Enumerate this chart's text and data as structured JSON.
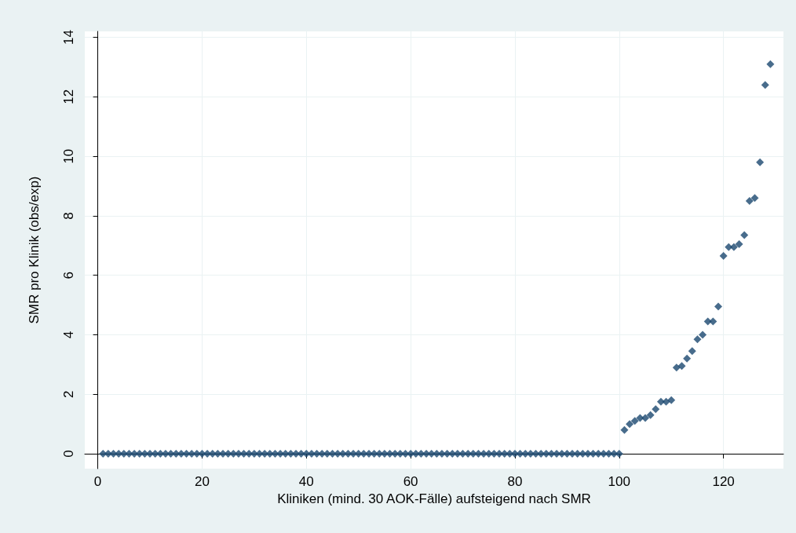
{
  "chart_data": {
    "type": "scatter",
    "xlabel": "Kliniken (mind. 30 AOK-Fälle) aufsteigend nach SMR",
    "ylabel": "SMR pro Klinik (obs/exp)",
    "x": [
      1,
      2,
      3,
      4,
      5,
      6,
      7,
      8,
      9,
      10,
      11,
      12,
      13,
      14,
      15,
      16,
      17,
      18,
      19,
      20,
      21,
      22,
      23,
      24,
      25,
      26,
      27,
      28,
      29,
      30,
      31,
      32,
      33,
      34,
      35,
      36,
      37,
      38,
      39,
      40,
      41,
      42,
      43,
      44,
      45,
      46,
      47,
      48,
      49,
      50,
      51,
      52,
      53,
      54,
      55,
      56,
      57,
      58,
      59,
      60,
      61,
      62,
      63,
      64,
      65,
      66,
      67,
      68,
      69,
      70,
      71,
      72,
      73,
      74,
      75,
      76,
      77,
      78,
      79,
      80,
      81,
      82,
      83,
      84,
      85,
      86,
      87,
      88,
      89,
      90,
      91,
      92,
      93,
      94,
      95,
      96,
      97,
      98,
      99,
      100,
      101,
      102,
      103,
      104,
      105,
      106,
      107,
      108,
      109,
      110,
      111,
      112,
      113,
      114,
      115,
      116,
      117,
      118,
      119,
      120,
      121,
      122,
      123,
      124,
      125,
      126,
      127,
      128,
      129
    ],
    "values": [
      0,
      0,
      0,
      0,
      0,
      0,
      0,
      0,
      0,
      0,
      0,
      0,
      0,
      0,
      0,
      0,
      0,
      0,
      0,
      0,
      0,
      0,
      0,
      0,
      0,
      0,
      0,
      0,
      0,
      0,
      0,
      0,
      0,
      0,
      0,
      0,
      0,
      0,
      0,
      0,
      0,
      0,
      0,
      0,
      0,
      0,
      0,
      0,
      0,
      0,
      0,
      0,
      0,
      0,
      0,
      0,
      0,
      0,
      0,
      0,
      0,
      0,
      0,
      0,
      0,
      0,
      0,
      0,
      0,
      0,
      0,
      0,
      0,
      0,
      0,
      0,
      0,
      0,
      0,
      0,
      0,
      0,
      0,
      0,
      0,
      0,
      0,
      0,
      0,
      0,
      0,
      0,
      0,
      0,
      0,
      0,
      0,
      0,
      0,
      0,
      0.8,
      1.0,
      1.1,
      1.2,
      1.2,
      1.3,
      1.5,
      1.75,
      1.75,
      1.8,
      2.9,
      2.95,
      3.2,
      3.45,
      3.85,
      4.0,
      4.45,
      4.45,
      4.95,
      6.65,
      6.95,
      6.95,
      7.05,
      7.35,
      8.5,
      8.6,
      9.8,
      12.4,
      13.1
    ],
    "color": "#1a476f",
    "marker": "diamond",
    "grid": true,
    "xlim": [
      -2.5,
      131.5
    ],
    "xticks": [
      0,
      20,
      40,
      60,
      80,
      100,
      120
    ],
    "ylim": [
      -0.5,
      14.2
    ],
    "yticks": [
      0,
      2,
      4,
      6,
      8,
      10,
      12,
      14
    ]
  }
}
